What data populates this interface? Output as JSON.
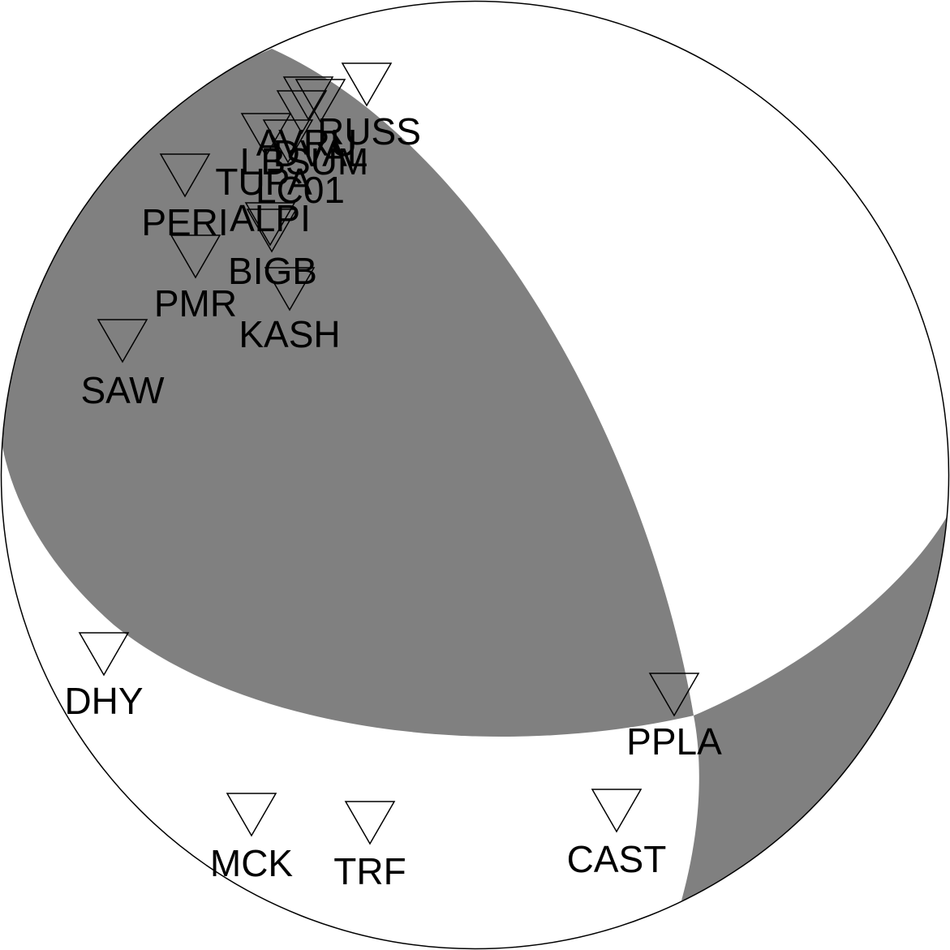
{
  "diagram": {
    "type": "focal-mechanism-beachball",
    "compressional_color": "#808080",
    "dilatational_color": "#ffffff",
    "outline_color": "#000000"
  },
  "stations": [
    {
      "name": "RUSS"
    },
    {
      "name": "AVRU"
    },
    {
      "name": "DVAL"
    },
    {
      "name": "LBSUM"
    },
    {
      "name": "TUPA"
    },
    {
      "name": "LC01"
    },
    {
      "name": "ALPI"
    },
    {
      "name": "PERI"
    },
    {
      "name": "BIGB"
    },
    {
      "name": "PMR"
    },
    {
      "name": "KASH"
    },
    {
      "name": "SAW"
    },
    {
      "name": "DHY"
    },
    {
      "name": "PPLA"
    },
    {
      "name": "MCK"
    },
    {
      "name": "TRF"
    },
    {
      "name": "CAST"
    }
  ]
}
